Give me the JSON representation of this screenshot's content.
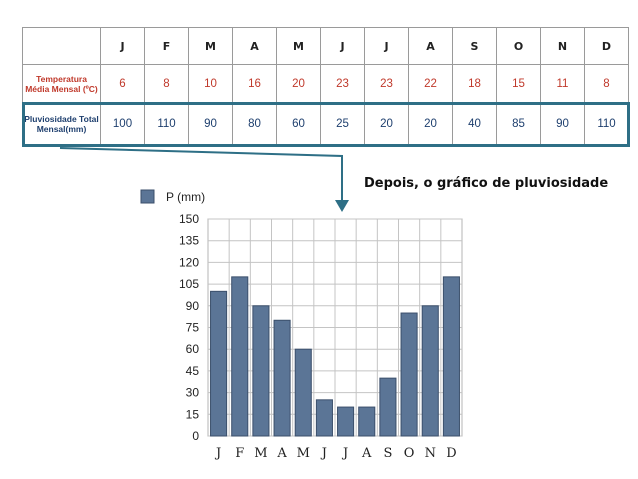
{
  "table": {
    "months": [
      "J",
      "F",
      "M",
      "A",
      "M",
      "J",
      "J",
      "A",
      "S",
      "O",
      "N",
      "D"
    ],
    "rows": [
      {
        "label": "Temperatura Média Mensal (ºC)",
        "values": [
          6,
          8,
          10,
          16,
          20,
          23,
          23,
          22,
          18,
          15,
          11,
          8
        ]
      },
      {
        "label": "Pluviosidade Total Mensal(mm)",
        "values": [
          100,
          110,
          90,
          80,
          60,
          25,
          20,
          20,
          40,
          85,
          90,
          110
        ]
      }
    ]
  },
  "caption": "Depois, o gráfico de pluviosidade",
  "colors": {
    "bar": "#5b7596",
    "bar_stroke": "#3b4f6b",
    "arrow": "#2e6f86",
    "temp": "#c0392b",
    "rain": "#1e3f6e"
  },
  "chart_data": {
    "type": "bar",
    "categories": [
      "J",
      "F",
      "M",
      "A",
      "M",
      "J",
      "J",
      "A",
      "S",
      "O",
      "N",
      "D"
    ],
    "series": [
      {
        "name": "P (mm)",
        "values": [
          100,
          110,
          90,
          80,
          60,
          25,
          20,
          20,
          40,
          85,
          90,
          110
        ]
      }
    ],
    "yticks": [
      0,
      15,
      30,
      45,
      60,
      75,
      90,
      105,
      120,
      135,
      150
    ],
    "ylim": [
      0,
      150
    ],
    "grid": true,
    "legend": "top-left"
  }
}
